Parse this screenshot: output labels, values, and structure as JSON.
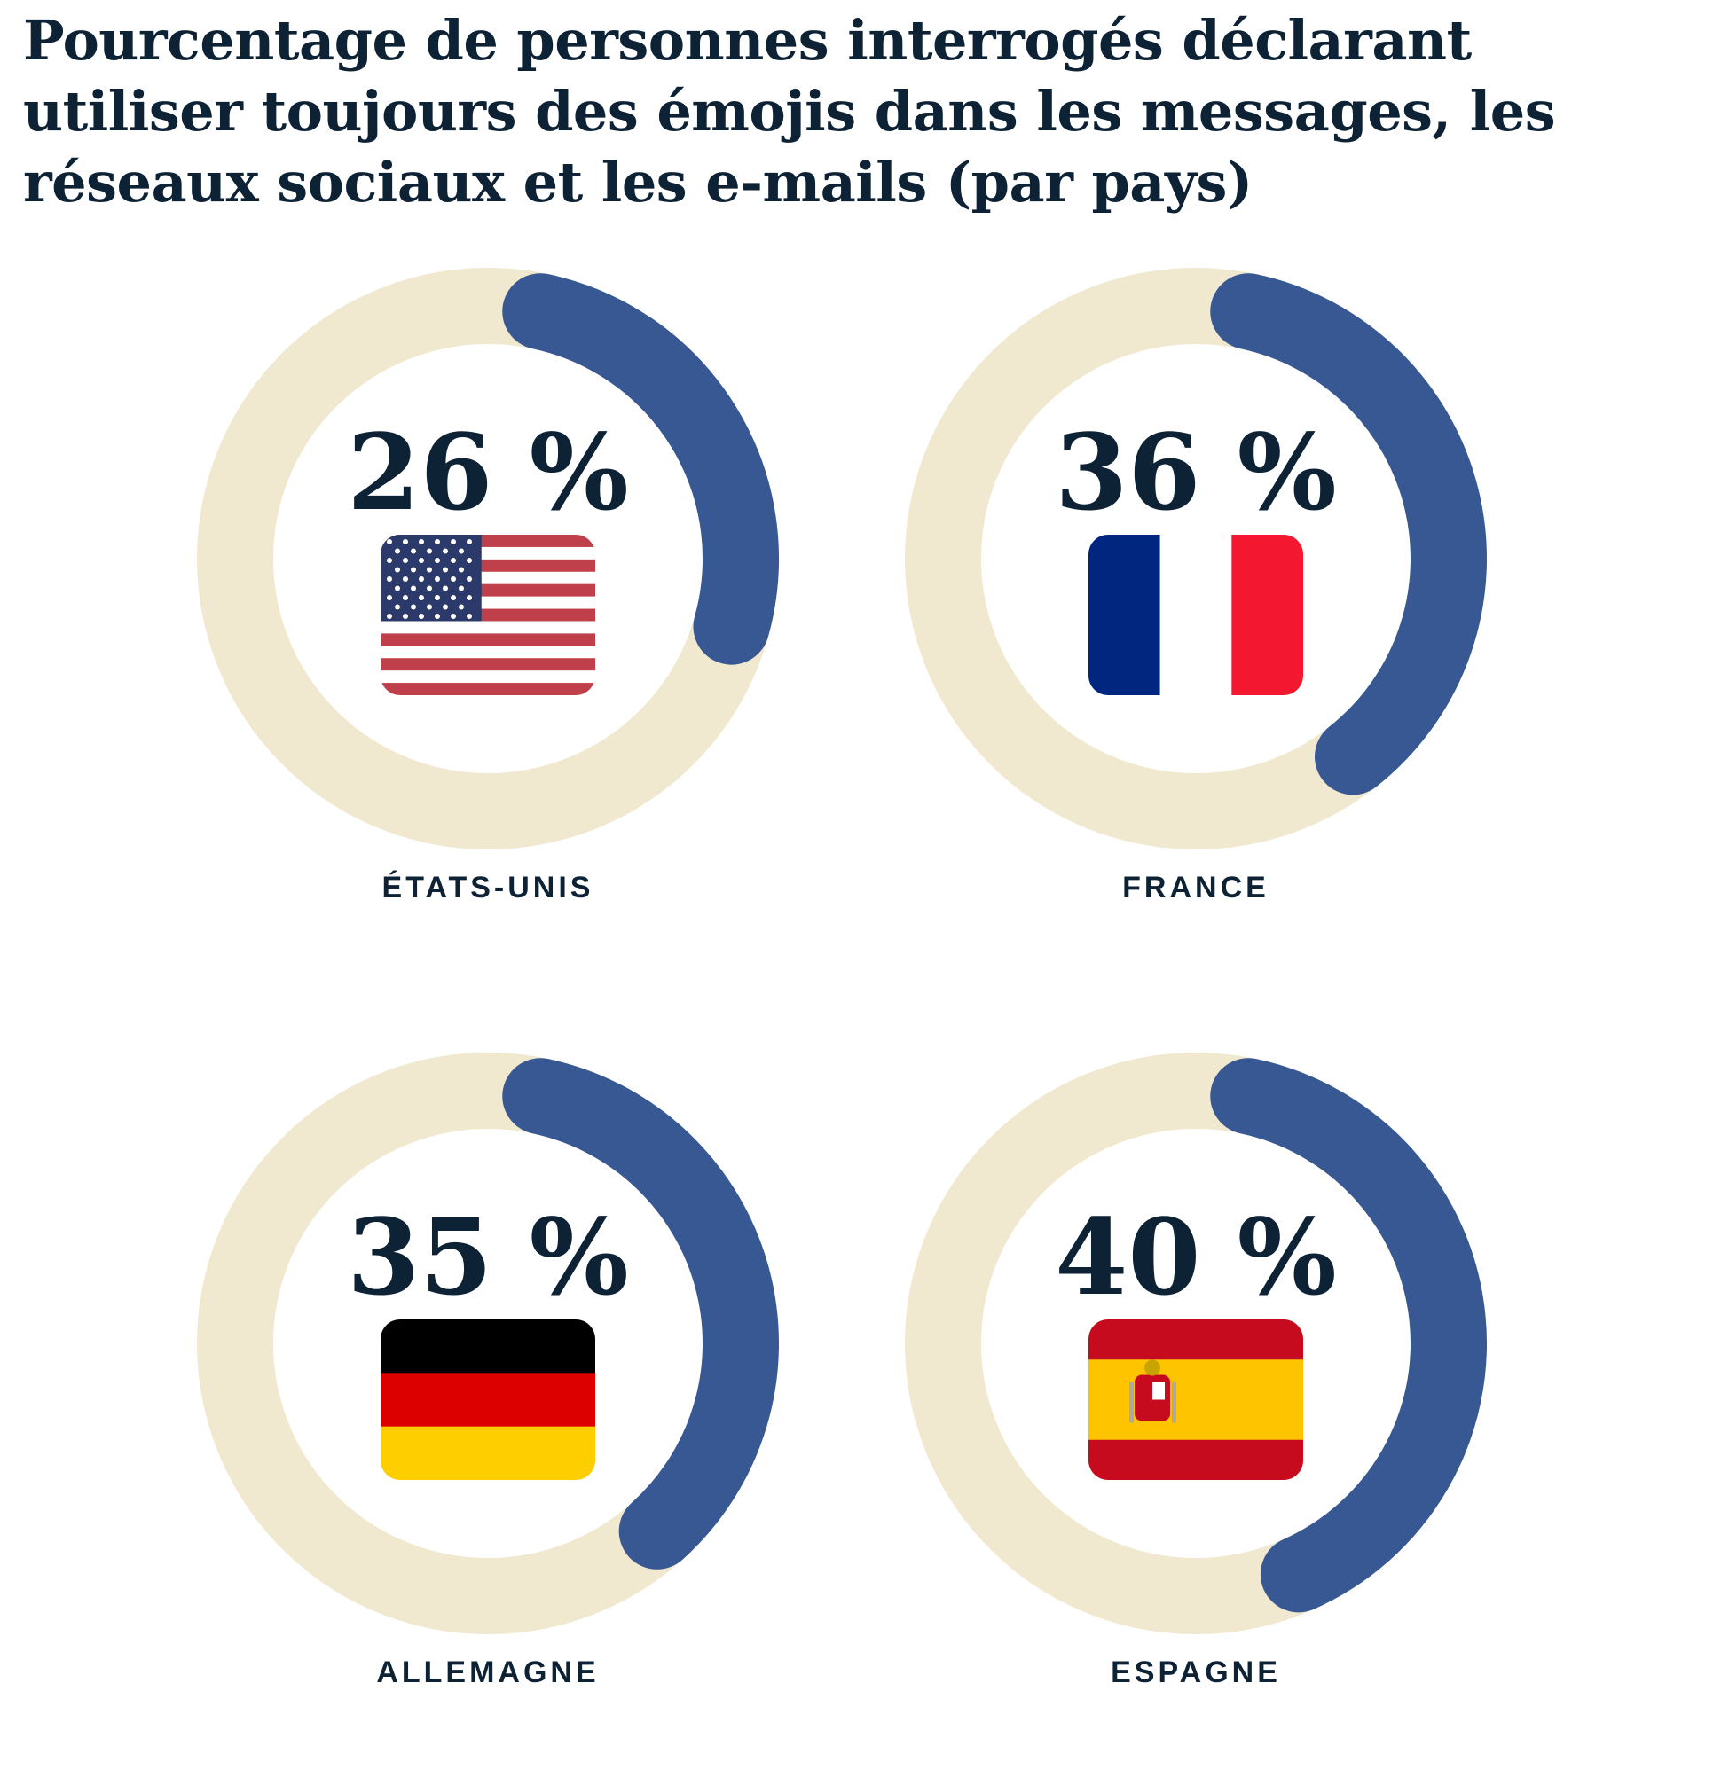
{
  "chart_data": {
    "type": "donut",
    "title": "Pourcentage de personnes interrogés déclarant utiliser toujours des émojis dans les messages, les réseaux sociaux et les e-mails (par pays)",
    "unit": "%",
    "colors": {
      "value": "#375893",
      "track": "#f0e9cf",
      "text": "#0e2235"
    },
    "items": [
      {
        "country": "ÉTATS-UNIS",
        "value": 26,
        "label": "26 %",
        "flag": "us-flag"
      },
      {
        "country": "FRANCE",
        "value": 36,
        "label": "36 %",
        "flag": "france-flag"
      },
      {
        "country": "ALLEMAGNE",
        "value": 35,
        "label": "35 %",
        "flag": "germany-flag"
      },
      {
        "country": "ESPAGNE",
        "value": 40,
        "label": "40 %",
        "flag": "spain-flag"
      }
    ]
  }
}
